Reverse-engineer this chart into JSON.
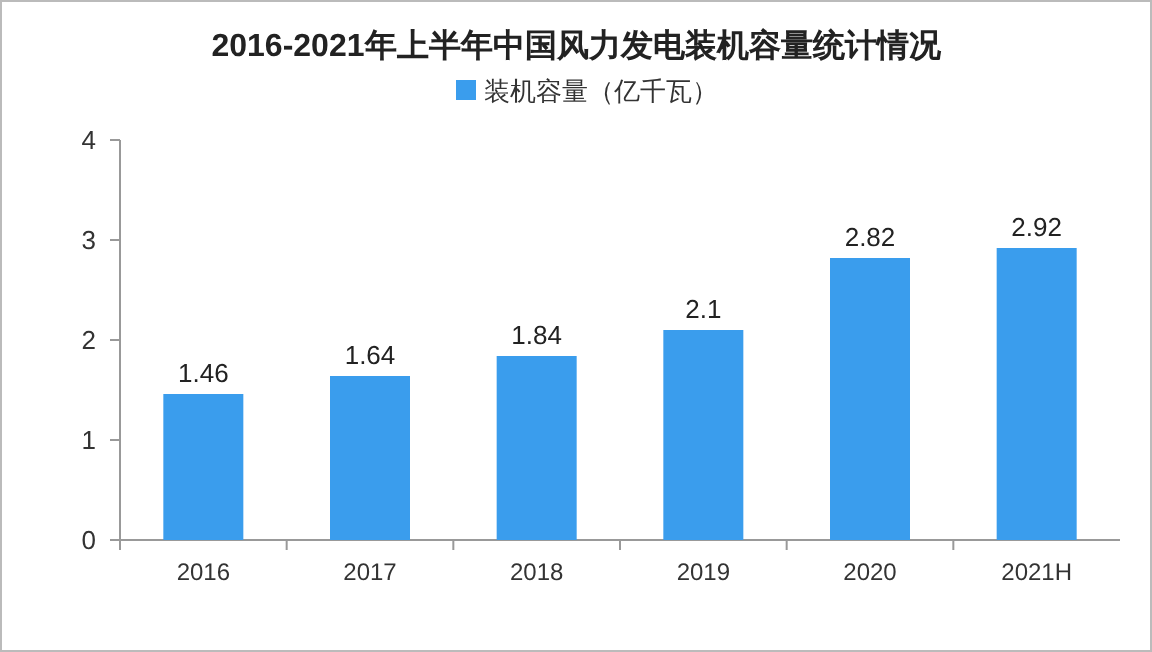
{
  "chart_data": {
    "type": "bar",
    "title": "2016-2021年上半年中国风力发电装机容量统计情况",
    "categories": [
      "2016",
      "2017",
      "2018",
      "2019",
      "2020",
      "2021H"
    ],
    "series": [
      {
        "name": "装机容量（亿千瓦）",
        "color": "#3a9ded",
        "values": [
          1.46,
          1.64,
          1.84,
          2.1,
          2.82,
          2.92
        ]
      }
    ],
    "ylim": [
      0,
      4
    ],
    "yticks": [
      0,
      1,
      2,
      3,
      4
    ],
    "grid": false,
    "legend": "top",
    "data_labels": true
  }
}
